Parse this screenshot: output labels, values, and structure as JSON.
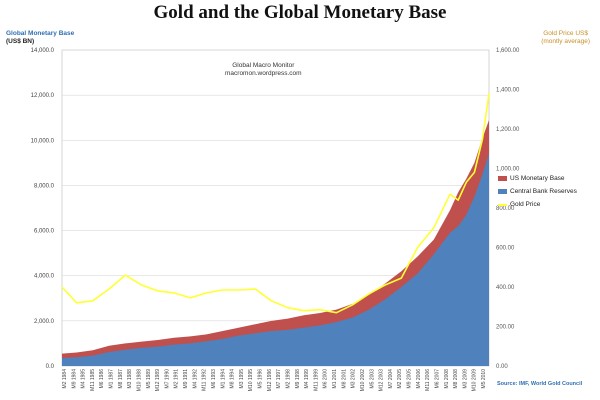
{
  "title": "Gold and the Global Monetary Base",
  "left_axis_title": "Global Monetary Base",
  "left_axis_units": "(US$ BN)",
  "right_axis_title": "Gold Price US$",
  "right_axis_units": "(montly average)",
  "watermark_title": "Global Macro Monitor",
  "watermark_site": "macromon.wordpress.com",
  "source": "Source:    IMF, World Gold Council",
  "colors": {
    "us_monetary_base": "#c0504d",
    "central_bank_reserves": "#4f81bd",
    "gold_price": "#ffff33",
    "grid": "#d9d9d9",
    "left_tick_text": "#444444",
    "right_tick_text": "#555555"
  },
  "chart_data": {
    "type": "area",
    "x_tick_labels": [
      "M2 1984",
      "M9 1984",
      "M4 1985",
      "M11 1985",
      "M6 1986",
      "M1 1987",
      "M8 1987",
      "M3 1988",
      "M10 1988",
      "M5 1989",
      "M12 1989",
      "M7 1990",
      "M2 1991",
      "M9 1991",
      "M4 1992",
      "M11 1992",
      "M6 1993",
      "M1 1994",
      "M8 1994",
      "M3 1995",
      "M10 1995",
      "M5 1996",
      "M12 1996",
      "M7 1997",
      "M2 1998",
      "M9 1998",
      "M4 1999",
      "M11 1999",
      "M6 2000",
      "M1 2001",
      "M8 2001",
      "M3 2002",
      "M10 2002",
      "M5 2003",
      "M12 2003",
      "M7 2004",
      "M2 2005",
      "M9 2005",
      "M4 2006",
      "M11 2006",
      "M6 2007",
      "M1 2008",
      "M8 2008",
      "M3 2009",
      "M10 2009",
      "M5 2010"
    ],
    "x": [
      1984.1,
      1985,
      1986,
      1987,
      1988,
      1989,
      1990,
      1991,
      1992,
      1993,
      1994,
      1995,
      1996,
      1997,
      1998,
      1999,
      2000,
      2001,
      2002,
      2003,
      2004,
      2005,
      2006,
      2007,
      2008,
      2008.5,
      2009,
      2009.5,
      2010,
      2010.4
    ],
    "series": [
      {
        "name": "Central Bank Reserves",
        "values": [
          350,
          390,
          460,
          620,
          720,
          800,
          860,
          950,
          1000,
          1100,
          1200,
          1350,
          1450,
          1550,
          1600,
          1700,
          1800,
          1950,
          2150,
          2500,
          2950,
          3500,
          4100,
          4950,
          5900,
          6200,
          6700,
          7500,
          8500,
          9400
        ]
      },
      {
        "name": "US Monetary Base",
        "values": [
          550,
          600,
          700,
          900,
          1000,
          1080,
          1150,
          1250,
          1310,
          1400,
          1550,
          1700,
          1850,
          2000,
          2100,
          2250,
          2350,
          2500,
          2750,
          3150,
          3650,
          4200,
          4850,
          5600,
          6900,
          7700,
          8300,
          9000,
          10100,
          10900
        ]
      },
      {
        "name": "Gold Price",
        "values": [
          400,
          320,
          330,
          390,
          460,
          410,
          380,
          370,
          345,
          370,
          385,
          385,
          390,
          330,
          295,
          280,
          285,
          270,
          310,
          365,
          410,
          445,
          600,
          700,
          870,
          840,
          930,
          980,
          1150,
          1380
        ]
      }
    ],
    "y_left": {
      "ylim": [
        0,
        14000
      ],
      "ticks": [
        "0.0",
        "2,000.0",
        "4,000.0",
        "6,000.0",
        "8,000.0",
        "10,000.0",
        "12,000.0",
        "14,000.0"
      ]
    },
    "y_right": {
      "ylim": [
        0,
        1600
      ],
      "ticks": [
        "0.00",
        "200.00",
        "400.00",
        "600.00",
        "800.00",
        "1,000.00",
        "1,200.00",
        "1,400.00",
        "1,600.00"
      ]
    },
    "grid": true,
    "legend_placement": "right"
  }
}
